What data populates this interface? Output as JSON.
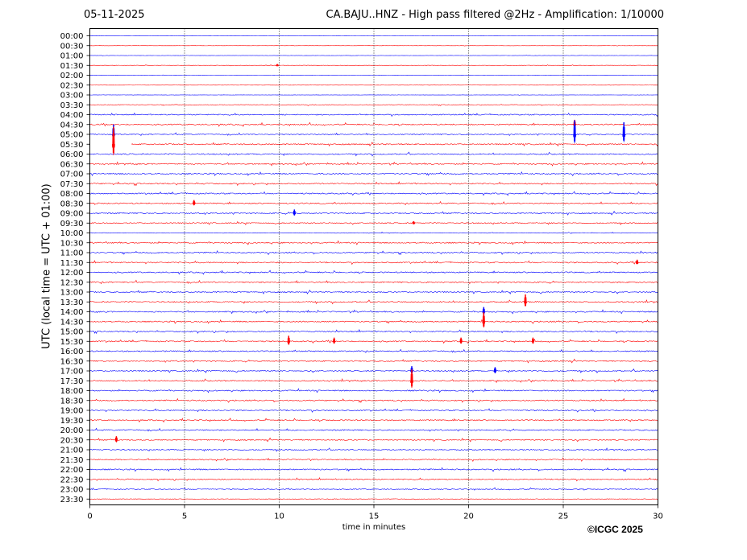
{
  "header": {
    "date": "05-11-2025",
    "title": "CA.BAJU..HNZ - High pass filtered @2Hz - Amplification: 1/10000"
  },
  "footer": {
    "copyright": "©ICGC 2025"
  },
  "chart_data": {
    "type": "line",
    "title": "CA.BAJU..HNZ - High pass filtered @2Hz - Amplification: 1/10000",
    "xlabel": "time in minutes",
    "ylabel": "UTC (local time = UTC + 01:00)",
    "xlim": [
      0,
      30
    ],
    "x_ticks": [
      0,
      5,
      10,
      15,
      20,
      25,
      30
    ],
    "grid": "vertical dotted at 5-minute ticks",
    "row_labels": [
      "00:00",
      "00:30",
      "01:00",
      "01:30",
      "02:00",
      "02:30",
      "03:00",
      "03:30",
      "04:00",
      "04:30",
      "05:00",
      "05:30",
      "06:00",
      "06:30",
      "07:00",
      "07:30",
      "08:00",
      "08:30",
      "09:00",
      "09:30",
      "10:00",
      "10:30",
      "11:00",
      "11:30",
      "12:00",
      "12:30",
      "13:00",
      "13:30",
      "14:00",
      "14:30",
      "15:00",
      "15:30",
      "16:00",
      "16:30",
      "17:00",
      "17:30",
      "18:00",
      "18:30",
      "19:00",
      "19:30",
      "20:00",
      "20:30",
      "21:00",
      "21:30",
      "22:00",
      "22:30",
      "23:00",
      "23:30"
    ],
    "row_colors": [
      "#0000ff",
      "#ff0000"
    ],
    "noise_level": [
      0.2,
      0.2,
      0.2,
      0.3,
      0.2,
      0.2,
      0.2,
      0.5,
      0.9,
      1.0,
      0.9,
      1.0,
      1.0,
      1.0,
      1.0,
      1.0,
      1.0,
      1.0,
      1.0,
      0.9,
      0.5,
      1.0,
      1.0,
      1.0,
      1.0,
      1.1,
      1.0,
      1.0,
      1.0,
      1.0,
      1.0,
      1.0,
      1.0,
      1.0,
      1.0,
      1.0,
      1.0,
      1.0,
      1.0,
      1.0,
      1.0,
      1.0,
      0.9,
      0.9,
      1.0,
      0.9,
      0.8,
      0.5
    ],
    "spikes": [
      {
        "row": 3,
        "x": 9.9,
        "amp": 0.15,
        "dir": -1
      },
      {
        "row": 10,
        "x": 1.25,
        "amp": 1.05,
        "dir": 1
      },
      {
        "row": 11,
        "x": 1.25,
        "amp": 1.85,
        "dir": 1
      },
      {
        "row": 9,
        "x": 25.6,
        "amp": 0.5,
        "dir": 1
      },
      {
        "row": 10,
        "x": 25.6,
        "amp": 1.5,
        "dir": 1
      },
      {
        "row": 10,
        "x": 28.2,
        "amp": 1.3,
        "dir": 1
      },
      {
        "row": 17,
        "x": 5.5,
        "amp": 0.35,
        "dir": 1
      },
      {
        "row": 18,
        "x": 10.8,
        "amp": 0.4,
        "dir": 1
      },
      {
        "row": 19,
        "x": 17.1,
        "amp": 0.2,
        "dir": 1
      },
      {
        "row": 23,
        "x": 28.9,
        "amp": 0.3,
        "dir": 1
      },
      {
        "row": 27,
        "x": 23.0,
        "amp": 0.8,
        "dir": 1
      },
      {
        "row": 28,
        "x": 20.8,
        "amp": 0.5,
        "dir": 1
      },
      {
        "row": 29,
        "x": 20.8,
        "amp": 1.0,
        "dir": 1
      },
      {
        "row": 31,
        "x": 10.5,
        "amp": 0.6,
        "dir": 1
      },
      {
        "row": 31,
        "x": 12.9,
        "amp": 0.4,
        "dir": 1
      },
      {
        "row": 31,
        "x": 19.6,
        "amp": 0.4,
        "dir": 1
      },
      {
        "row": 31,
        "x": 23.4,
        "amp": 0.4,
        "dir": 1
      },
      {
        "row": 34,
        "x": 21.4,
        "amp": 0.4,
        "dir": 1
      },
      {
        "row": 34,
        "x": 17.0,
        "amp": 0.5,
        "dir": 1
      },
      {
        "row": 35,
        "x": 17.0,
        "amp": 1.2,
        "dir": 1
      },
      {
        "row": 41,
        "x": 1.4,
        "amp": 0.4,
        "dir": 1
      }
    ]
  }
}
